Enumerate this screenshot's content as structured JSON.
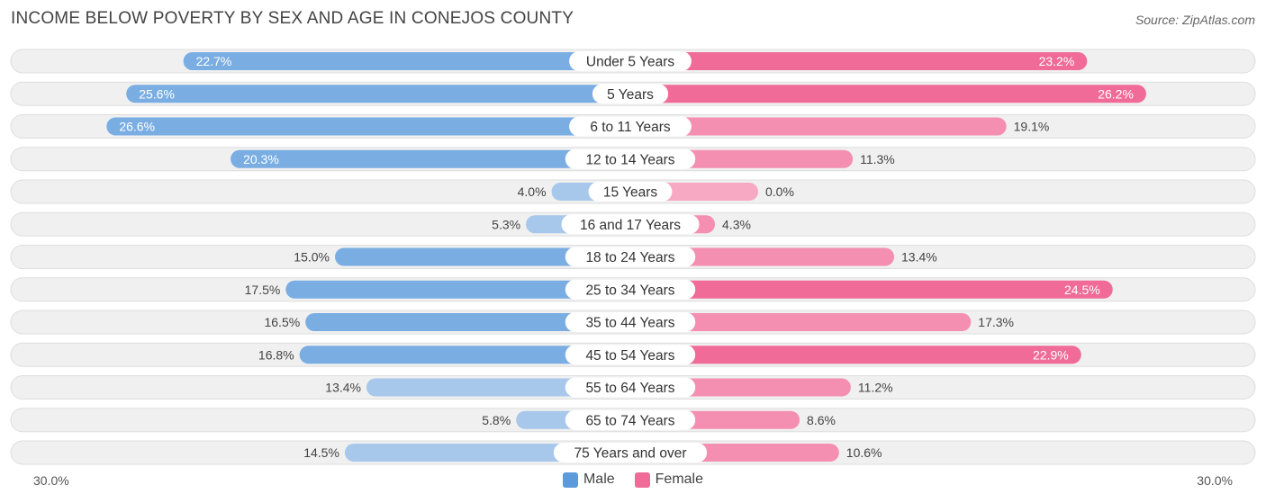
{
  "title": "INCOME BELOW POVERTY BY SEX AND AGE IN CONEJOS COUNTY",
  "source": "Source: ZipAtlas.com",
  "axis": {
    "left_label": "30.0%",
    "right_label": "30.0%"
  },
  "legend": {
    "male": "Male",
    "female": "Female"
  },
  "colors": {
    "male_strong": "#5b9bdc",
    "male_light": "#a7c8ea",
    "female_strong": "#f06b97",
    "female_light": "#f7a8c3",
    "row_bg": "#f0f0f0",
    "row_border": "#dedede"
  },
  "chart_data": {
    "type": "bar",
    "orientation": "horizontal-diverging",
    "title": "INCOME BELOW POVERTY BY SEX AND AGE IN CONEJOS COUNTY",
    "xlim": [
      -30,
      30
    ],
    "categories": [
      "Under 5 Years",
      "5 Years",
      "6 to 11 Years",
      "12 to 14 Years",
      "15 Years",
      "16 and 17 Years",
      "18 to 24 Years",
      "25 to 34 Years",
      "35 to 44 Years",
      "45 to 54 Years",
      "55 to 64 Years",
      "65 to 74 Years",
      "75 Years and over"
    ],
    "series": [
      {
        "name": "Male",
        "values": [
          22.7,
          25.6,
          26.6,
          20.3,
          4.0,
          5.3,
          15.0,
          17.5,
          16.5,
          16.8,
          13.4,
          5.8,
          14.5
        ],
        "labels": [
          "22.7%",
          "25.6%",
          "26.6%",
          "20.3%",
          "4.0%",
          "5.3%",
          "15.0%",
          "17.5%",
          "16.5%",
          "16.8%",
          "13.4%",
          "5.8%",
          "14.5%"
        ]
      },
      {
        "name": "Female",
        "values": [
          23.2,
          26.2,
          19.1,
          11.3,
          0.0,
          4.3,
          13.4,
          24.5,
          17.3,
          22.9,
          11.2,
          8.6,
          10.6
        ],
        "labels": [
          "23.2%",
          "26.2%",
          "19.1%",
          "11.3%",
          "0.0%",
          "4.3%",
          "13.4%",
          "24.5%",
          "17.3%",
          "22.9%",
          "11.2%",
          "8.6%",
          "10.6%"
        ]
      }
    ],
    "legend_position": "bottom-center"
  }
}
